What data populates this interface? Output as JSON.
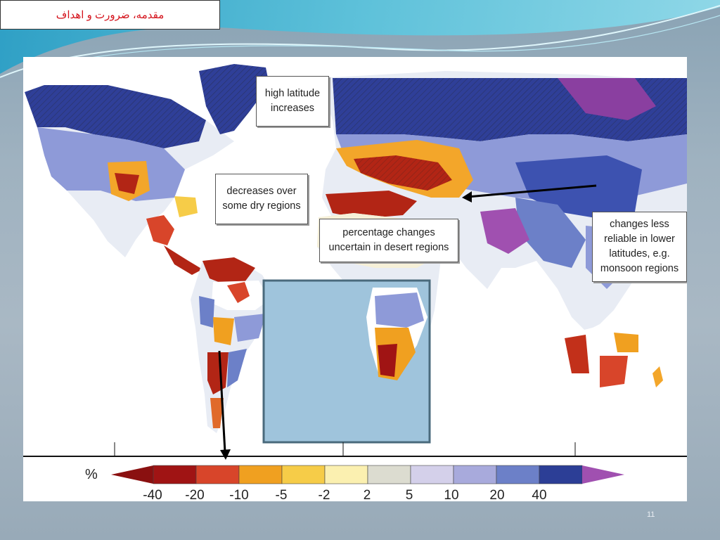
{
  "slide": {
    "title": "مقدمه، ضرورت و اهداف",
    "page_number": "11"
  },
  "map": {
    "callouts": [
      {
        "id": "high-latitude",
        "text": "high latitude increases"
      },
      {
        "id": "dry-regions",
        "text": "decreases over some dry regions"
      },
      {
        "id": "desert",
        "text": "percentage changes uncertain in desert regions"
      },
      {
        "id": "monsoon",
        "text": "changes less reliable in lower latitudes, e.g. monsoon regions"
      }
    ],
    "legend": {
      "unit": "%",
      "ticks": [
        "-40",
        "-20",
        "-10",
        "-5",
        "-2",
        "2",
        "5",
        "10",
        "20",
        "40"
      ],
      "colors": [
        "#a01414",
        "#d8452a",
        "#f0a020",
        "#f6cc48",
        "#fbf0b0",
        "#dcdcd0",
        "#d4d0ea",
        "#a8aadc",
        "#6c80c8",
        "#2c3e96"
      ],
      "low_arrow_color": "#8a1010",
      "high_arrow_color": "#a050b0"
    }
  }
}
